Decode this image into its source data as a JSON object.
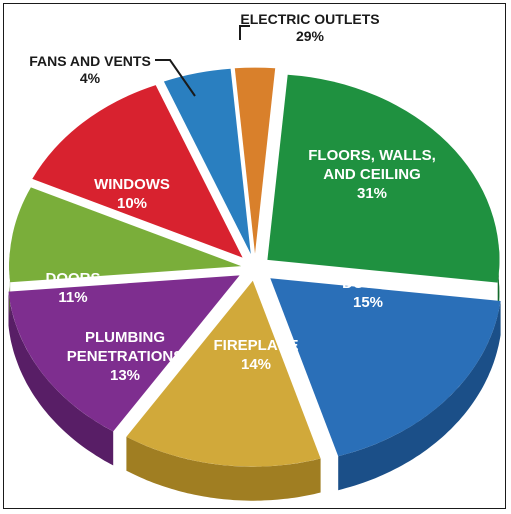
{
  "chart_data": {
    "type": "pie",
    "title": "",
    "value_suffix": "%",
    "slices": [
      {
        "name": "ELECTRIC OUTLETS",
        "label_lines": [
          "ELECTRIC OUTLETS"
        ],
        "value": 29,
        "display": "29%",
        "color": "#d9802b",
        "side_color": "#8f4f13",
        "label_placement": "outside"
      },
      {
        "name": "FLOORS, WALLS, AND CEILING",
        "label_lines": [
          "FLOORS, WALLS,",
          "AND CEILING"
        ],
        "value": 31,
        "display": "31%",
        "color": "#1f9140",
        "side_color": "#136a2c",
        "label_placement": "inside"
      },
      {
        "name": "DUCTS",
        "label_lines": [
          "DUCTS"
        ],
        "value": 15,
        "display": "15%",
        "color": "#2a6fb8",
        "side_color": "#1b4f88",
        "label_placement": "inside"
      },
      {
        "name": "FIREPLACE",
        "label_lines": [
          "FIREPLACE"
        ],
        "value": 14,
        "display": "14%",
        "color": "#d1a93a",
        "side_color": "#a07e22",
        "label_placement": "inside"
      },
      {
        "name": "PLUMBING PENETRATIONS",
        "label_lines": [
          "PLUMBING",
          "PENETRATIONS"
        ],
        "value": 13,
        "display": "13%",
        "color": "#7e2e8f",
        "side_color": "#581e66",
        "label_placement": "inside"
      },
      {
        "name": "DOORS",
        "label_lines": [
          "DOORS"
        ],
        "value": 11,
        "display": "11%",
        "color": "#7aae3a",
        "side_color": "#567e25",
        "label_placement": "inside"
      },
      {
        "name": "WINDOWS",
        "label_lines": [
          "WINDOWS"
        ],
        "value": 10,
        "display": "10%",
        "color": "#d8222f",
        "side_color": "#9b161f",
        "label_placement": "inside"
      },
      {
        "name": "FANS AND VENTS",
        "label_lines": [
          "FANS AND VENTS"
        ],
        "value": 4,
        "display": "4%",
        "color": "#2a7fc0",
        "side_color": "#1a5a8c",
        "label_placement": "outside"
      }
    ]
  }
}
